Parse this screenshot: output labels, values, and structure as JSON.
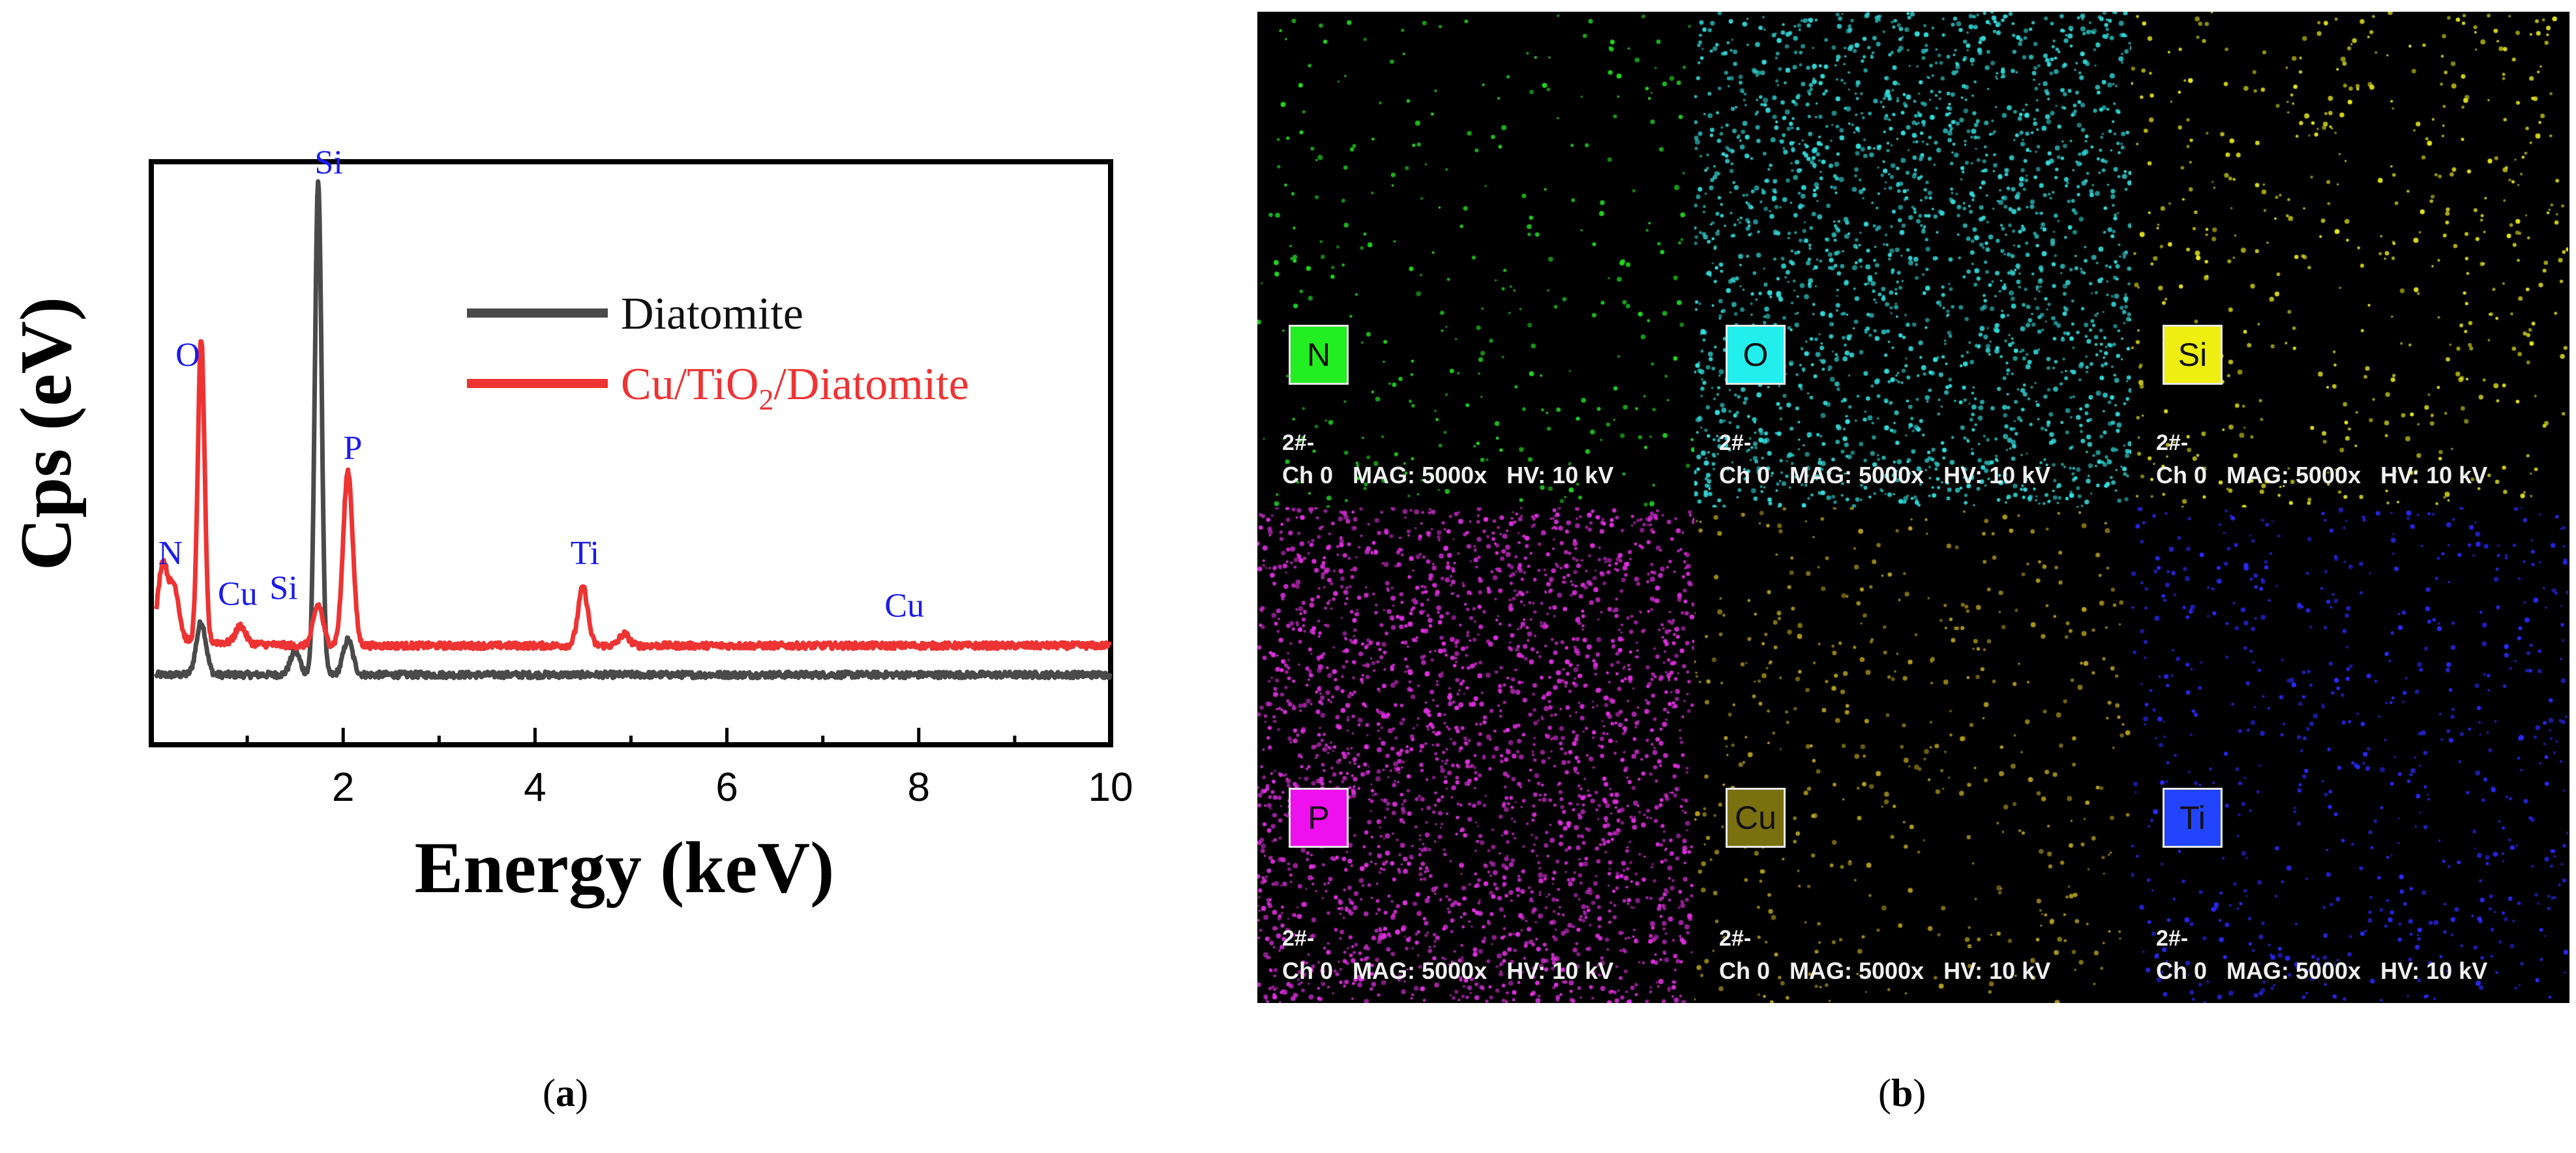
{
  "chart_data": {
    "type": "line",
    "xlabel": "Energy (keV)",
    "ylabel": "Cps (eV)",
    "xlim": [
      0,
      10
    ],
    "ylim": [
      0,
      100
    ],
    "xticks": [
      2,
      4,
      6,
      8,
      10
    ],
    "xtick_labels": [
      "2",
      "4",
      "6",
      "8",
      "10"
    ],
    "grid": false,
    "legend_position": "top-right",
    "series": [
      {
        "name": "Diatomite",
        "color": "#4a4a4a",
        "baseline": 12,
        "peaks": [
          {
            "x": 0.52,
            "height": 9
          },
          {
            "x": 1.5,
            "height": 4
          },
          {
            "x": 1.74,
            "height": 85
          },
          {
            "x": 2.05,
            "height": 6
          }
        ]
      },
      {
        "name": "Cu/TiO2/Diatomite",
        "color": "#ee3333",
        "baseline": 17,
        "peaks": [
          {
            "x": 0.12,
            "height": 13
          },
          {
            "x": 0.24,
            "height": 9
          },
          {
            "x": 0.52,
            "height": 52
          },
          {
            "x": 0.93,
            "height": 3
          },
          {
            "x": 1.74,
            "height": 7
          },
          {
            "x": 2.05,
            "height": 30
          },
          {
            "x": 4.5,
            "height": 10
          },
          {
            "x": 4.93,
            "height": 2
          }
        ]
      }
    ],
    "legend": [
      {
        "label": "Diatomite",
        "color": "#4a4a4a"
      },
      {
        "label_main": "Cu/TiO",
        "label_sub": "2",
        "label_tail": "/Diatomite",
        "color": "#ee3333"
      }
    ],
    "annotations": [
      {
        "text": "Si",
        "x": 1.85,
        "y": 98
      },
      {
        "text": "O",
        "x": 0.38,
        "y": 65
      },
      {
        "text": "P",
        "x": 2.1,
        "y": 49
      },
      {
        "text": "N",
        "x": 0.2,
        "y": 31
      },
      {
        "text": "Cu",
        "x": 0.9,
        "y": 24
      },
      {
        "text": "Si",
        "x": 1.38,
        "y": 25
      },
      {
        "text": "Ti",
        "x": 4.52,
        "y": 31
      },
      {
        "text": "Cu",
        "x": 7.85,
        "y": 22
      }
    ]
  },
  "maps": {
    "tiles": [
      {
        "element": "N",
        "color": "#22dd22",
        "label_bg": "#22ee22",
        "density": 320,
        "id": "2#-",
        "info": "Ch 0   MAG: 5000x   HV: 10 kV"
      },
      {
        "element": "O",
        "color": "#33dddd",
        "label_bg": "#22eeee",
        "density": 2200,
        "id": "2#-",
        "info": "Ch 0   MAG: 5000x   HV: 10 kV"
      },
      {
        "element": "Si",
        "color": "#e8e820",
        "label_bg": "#eeee11",
        "density": 520,
        "id": "2#-",
        "info": "Ch 0   MAG: 5000x   HV: 10 kV"
      },
      {
        "element": "P",
        "color": "#e030e0",
        "label_bg": "#ee11ee",
        "density": 2600,
        "id": "2#-",
        "info": "Ch 0   MAG: 5000x   HV: 10 kV"
      },
      {
        "element": "Cu",
        "color": "#b8a020",
        "label_bg": "#7a7010",
        "density": 480,
        "id": "2#-",
        "info": "Ch 0   MAG: 5000x   HV: 10 kV"
      },
      {
        "element": "Ti",
        "color": "#2a2aff",
        "label_bg": "#2244ff",
        "density": 650,
        "id": "2#-",
        "info": "Ch 0   MAG: 5000x   HV: 10 kV"
      }
    ]
  },
  "captions": {
    "a": "a",
    "b": "b"
  }
}
